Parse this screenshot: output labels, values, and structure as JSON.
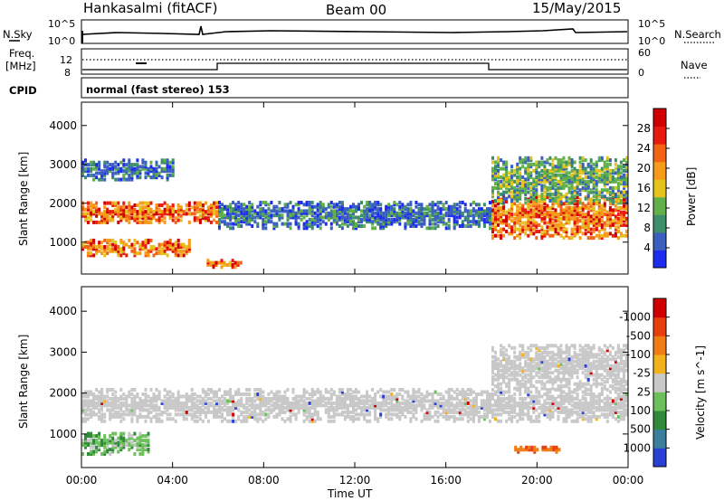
{
  "header": {
    "station": "Hankasalmi (fitACF)",
    "beam": "Beam 00",
    "date": "15/May/2015"
  },
  "noise_panel": {
    "left_label": "N.Sky",
    "right_label": "N.Search",
    "left_ticks": [
      "10^5",
      "10^0"
    ],
    "right_ticks": [
      "10^5",
      "10^0"
    ]
  },
  "freq_panel": {
    "left_label_1": "Freq.",
    "left_label_2": "[MHz]",
    "right_label": "Nave",
    "left_ticks": [
      "12",
      "8"
    ],
    "right_ticks": [
      "60",
      "0"
    ]
  },
  "cpid_panel": {
    "label": "CPID",
    "mode_text": "normal (fast stereo) 153"
  },
  "chart_data": [
    {
      "type": "heatmap",
      "title": "",
      "ylabel": "Slant Range [km]",
      "xlabel": "",
      "x_ticks": [
        "00:00",
        "04:00",
        "08:00",
        "12:00",
        "16:00",
        "20:00",
        "00:00"
      ],
      "y_ticks": [
        "1000",
        "2000",
        "3000",
        "4000"
      ],
      "ylim": [
        180,
        4600
      ],
      "xlim_hours": [
        0,
        24
      ],
      "colorbar_label": "Power [dB]",
      "colorbar_ticks": [
        "4",
        "8",
        "12",
        "16",
        "20",
        "24",
        "28"
      ],
      "colorbar_colors": [
        "#1d2cf0",
        "#3a5fc0",
        "#3d8f6a",
        "#62b04a",
        "#e6c31c",
        "#f59a19",
        "#f26414",
        "#e81a0e",
        "#d10000"
      ],
      "bands": [
        {
          "t": [
            0,
            6
          ],
          "range": [
            1500,
            2050
          ],
          "level": "high"
        },
        {
          "t": [
            0,
            4.8
          ],
          "range": [
            650,
            1050
          ],
          "level": "high"
        },
        {
          "t": [
            0,
            4
          ],
          "range": [
            2600,
            3100
          ],
          "level": "low"
        },
        {
          "t": [
            6,
            18
          ],
          "range": [
            1350,
            2050
          ],
          "level": "low"
        },
        {
          "t": [
            5.5,
            7
          ],
          "range": [
            350,
            550
          ],
          "level": "high"
        },
        {
          "t": [
            18,
            24
          ],
          "range": [
            1100,
            2200
          ],
          "level": "high"
        },
        {
          "t": [
            18,
            24
          ],
          "range": [
            2000,
            3200
          ],
          "level": "mid"
        }
      ]
    },
    {
      "type": "heatmap",
      "title": "",
      "ylabel": "Slant Range [km]",
      "xlabel": "Time UT",
      "x_ticks": [
        "00:00",
        "04:00",
        "08:00",
        "12:00",
        "16:00",
        "20:00",
        "00:00"
      ],
      "y_ticks": [
        "1000",
        "2000",
        "3000",
        "4000"
      ],
      "ylim": [
        180,
        4600
      ],
      "xlim_hours": [
        0,
        24
      ],
      "colorbar_label": "Velocity [m s^-1]",
      "colorbar_ticks": [
        "1000",
        "500",
        "100",
        "25",
        "-25",
        "-100",
        "-500",
        "-1000"
      ],
      "colorbar_colors": [
        "#2a3fd4",
        "#3c7f9c",
        "#2f8a3a",
        "#6cc05a",
        "#c8c8c8",
        "#f2b21c",
        "#f07c14",
        "#e6400e",
        "#d10000"
      ],
      "bands": [
        {
          "t": [
            0,
            24
          ],
          "range": [
            1300,
            2100
          ],
          "level": "ground"
        },
        {
          "t": [
            0,
            3
          ],
          "range": [
            500,
            1000
          ],
          "level": "green"
        },
        {
          "t": [
            18,
            24
          ],
          "range": [
            2100,
            3200
          ],
          "level": "ground"
        },
        {
          "t": [
            19,
            21
          ],
          "range": [
            550,
            700
          ],
          "level": "orange"
        }
      ]
    }
  ]
}
